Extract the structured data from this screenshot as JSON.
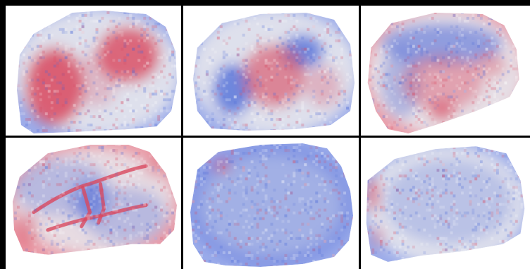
{
  "figure": {
    "rows": 2,
    "cols": 3,
    "colors": {
      "red": "#d9485f",
      "blue": "#4a68d8",
      "neutral": "#e6e6ec",
      "border": "#000000"
    },
    "panels": [
      {
        "name": "panel-1-1",
        "pattern": "two-red-lobes"
      },
      {
        "name": "panel-1-2",
        "pattern": "red-center-blue-lobes"
      },
      {
        "name": "panel-1-3",
        "pattern": "blue-arc-red-center"
      },
      {
        "name": "panel-2-1",
        "pattern": "red-filaments"
      },
      {
        "name": "panel-2-2",
        "pattern": "uniform-blue"
      },
      {
        "name": "panel-2-3",
        "pattern": "pale-blue-red-edge"
      }
    ]
  }
}
